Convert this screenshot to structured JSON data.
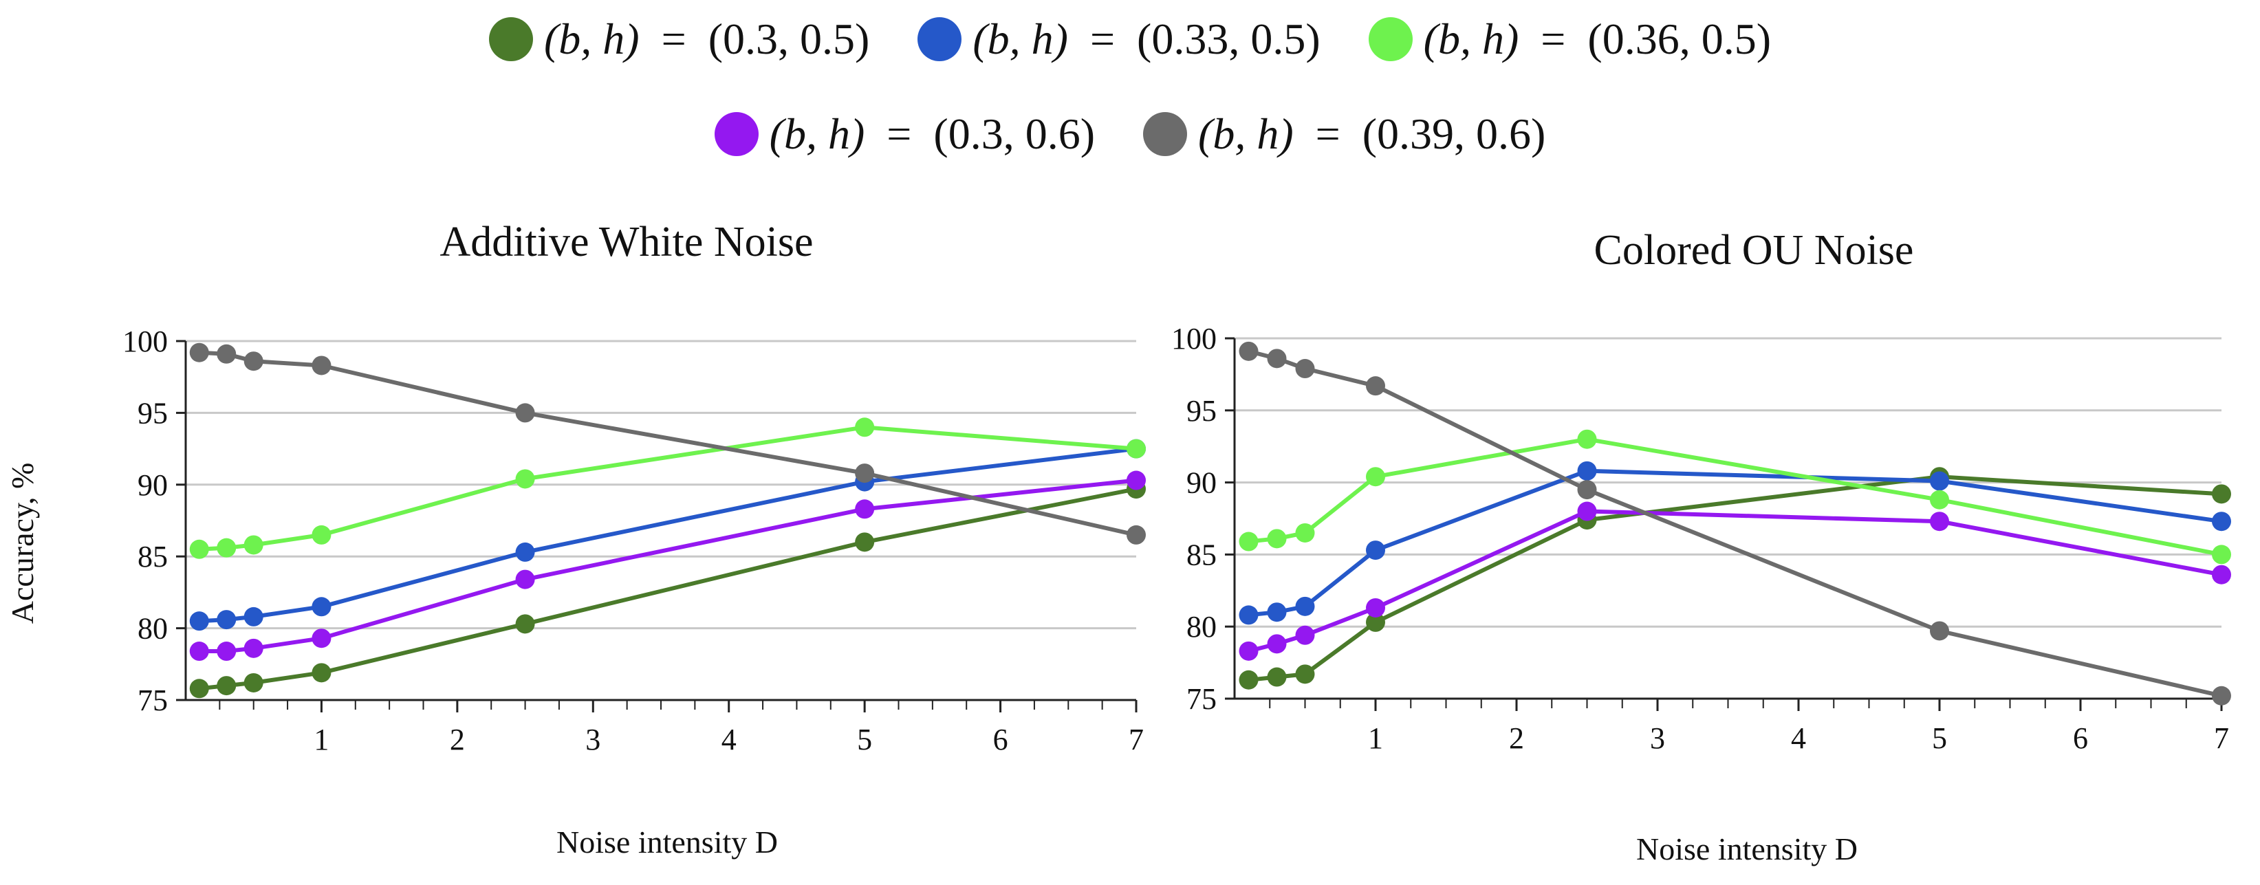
{
  "legend": {
    "label_prefix": "(b, h)",
    "label_equals": " = ",
    "items": [
      {
        "value": "(0.3, 0.5)",
        "color": "#4a7a2a"
      },
      {
        "value": "(0.33, 0.5)",
        "color": "#2558c9"
      },
      {
        "value": "(0.36, 0.5)",
        "color": "#6ef24e"
      },
      {
        "value": "(0.3, 0.6)",
        "color": "#9418f0"
      },
      {
        "value": "(0.39, 0.6)",
        "color": "#6b6b6b"
      }
    ]
  },
  "chart_data": [
    {
      "type": "line",
      "title": "Additive White Noise",
      "xlabel": "Noise intensity D",
      "ylabel": "Accuracy, %",
      "xlim": [
        0,
        7
      ],
      "ylim": [
        75,
        100
      ],
      "xticks": [
        1,
        2,
        3,
        4,
        5,
        6,
        7
      ],
      "yticks": [
        75,
        80,
        85,
        90,
        95,
        100
      ],
      "x": [
        0.1,
        0.3,
        0.5,
        1,
        2.5,
        5,
        7
      ],
      "series": [
        {
          "name": "(b, h) = (0.3, 0.5)",
          "values": [
            75.8,
            76.0,
            76.2,
            76.9,
            80.3,
            86.0,
            89.7
          ]
        },
        {
          "name": "(b, h) = (0.33, 0.5)",
          "values": [
            80.5,
            80.6,
            80.8,
            81.5,
            85.3,
            90.2,
            92.5
          ]
        },
        {
          "name": "(b, h) = (0.36, 0.5)",
          "values": [
            85.5,
            85.6,
            85.8,
            86.5,
            90.4,
            94.0,
            92.5
          ]
        },
        {
          "name": "(b, h) = (0.3, 0.6)",
          "values": [
            78.4,
            78.4,
            78.6,
            79.3,
            83.4,
            88.3,
            90.3
          ]
        },
        {
          "name": "(b, h) = (0.39, 0.6)",
          "values": [
            99.2,
            99.1,
            98.6,
            98.3,
            95.0,
            90.8,
            86.5
          ]
        }
      ]
    },
    {
      "type": "line",
      "title": "Colored OU Noise",
      "xlabel": "Noise intensity D",
      "ylabel": "",
      "xlim": [
        0,
        7
      ],
      "ylim": [
        75,
        100
      ],
      "xticks": [
        1,
        2,
        3,
        4,
        5,
        6,
        7
      ],
      "yticks": [
        75,
        80,
        85,
        90,
        95,
        100
      ],
      "x": [
        0.1,
        0.3,
        0.5,
        1,
        2.5,
        5,
        7
      ],
      "series": [
        {
          "name": "(b, h) = (0.3, 0.5)",
          "values": [
            76.3,
            76.5,
            76.7,
            80.3,
            87.4,
            90.4,
            89.2
          ]
        },
        {
          "name": "(b, h) = (0.33, 0.5)",
          "values": [
            80.8,
            81.0,
            81.4,
            85.3,
            90.8,
            90.1,
            87.3
          ]
        },
        {
          "name": "(b, h) = (0.36, 0.5)",
          "values": [
            85.9,
            86.1,
            86.5,
            90.4,
            93.0,
            88.8,
            85.0
          ]
        },
        {
          "name": "(b, h) = (0.3, 0.6)",
          "values": [
            78.3,
            78.8,
            79.4,
            81.3,
            88.0,
            87.3,
            83.6
          ]
        },
        {
          "name": "(b, h) = (0.39, 0.6)",
          "values": [
            99.1,
            98.6,
            97.9,
            96.7,
            89.5,
            79.7,
            75.2
          ]
        }
      ]
    }
  ]
}
